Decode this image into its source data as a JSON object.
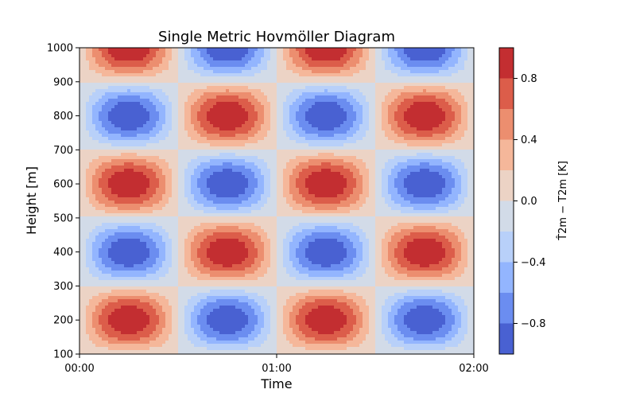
{
  "chart_data": {
    "type": "heatmap",
    "subtype": "filled-contour",
    "title": "Single Metric Hovmöller Diagram",
    "xlabel": "Time",
    "ylabel": "Height [m]",
    "x_ticks": [
      "00:00",
      "01:00",
      "02:00"
    ],
    "x_range_hours": [
      0,
      2
    ],
    "y_ticks": [
      100,
      200,
      300,
      400,
      500,
      600,
      700,
      800,
      900,
      1000
    ],
    "ylim": [
      100,
      1000
    ],
    "field": {
      "description_formula": "sin(2*pi*t/1h) * sin(2*pi*(z-100)/400), t in hours, z in m",
      "time_period_hours": 1,
      "height_period_m": 400,
      "amplitude": 1.0
    },
    "contour_levels": [
      -1.0,
      -0.8,
      -0.6,
      -0.4,
      -0.2,
      0.0,
      0.2,
      0.4,
      0.6,
      0.8,
      1.0
    ],
    "colormap": "coolwarm",
    "level_colors": [
      "#4961d2",
      "#6b8df0",
      "#93b5fe",
      "#b8d0f9",
      "#d2dbe8",
      "#ecd3c5",
      "#f5b79a",
      "#ec8e6f",
      "#dc5d4a",
      "#c32e31"
    ],
    "colorbar": {
      "label": "T̂2m − T2m [K]",
      "ticks": [
        "−0.8",
        "−0.4",
        "0.0",
        "0.4",
        "0.8"
      ],
      "tick_values": [
        -0.8,
        -0.4,
        0.0,
        0.4,
        0.8
      ],
      "range": [
        -1.0,
        1.0
      ]
    }
  }
}
